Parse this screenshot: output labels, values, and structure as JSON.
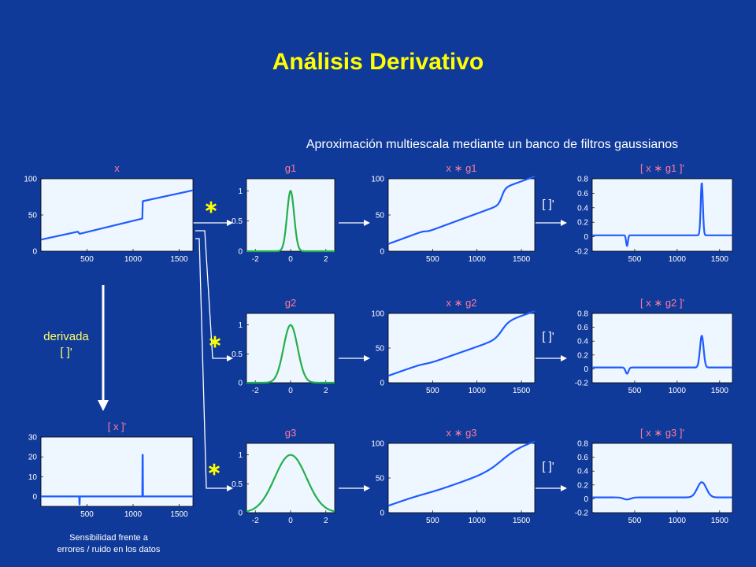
{
  "title": "Análisis Derivativo",
  "subtitle": "Aproximación multiescala mediante un banco de filtros gaussianos",
  "labels": {
    "x": "x",
    "derivative_x": "[ x ]'",
    "derivada": "derivada",
    "deriv_op": "[  ]'",
    "conv_symbol": "∗",
    "note_line1": "Sensibilidad frente a",
    "note_line2": "errores / ruido  en los datos"
  },
  "colors": {
    "background": "#103a9a",
    "title": "#ffff00",
    "plot_bg": "#eef6ff",
    "signal_line": "#1f5cff",
    "gauss_line": "#22b04a",
    "labels": "#ff7a9e",
    "connectors": "#ffffff"
  },
  "chart_data": [
    {
      "id": "x",
      "type": "line",
      "title": "x",
      "xticks": [
        500,
        1000,
        1500
      ],
      "yticks": [
        0,
        50,
        100
      ],
      "xlim": [
        0,
        1650
      ],
      "ylim": [
        0,
        100
      ],
      "series": [
        {
          "x": [
            0,
            400,
            420,
            1100,
            1105,
            1650
          ],
          "y": [
            16,
            27,
            24,
            45,
            69,
            84
          ]
        }
      ]
    },
    {
      "id": "dx",
      "type": "line",
      "title": "[ x ]'",
      "xticks": [
        500,
        1000,
        1500
      ],
      "yticks": [
        0,
        10,
        20,
        30
      ],
      "xlim": [
        0,
        1650
      ],
      "ylim": [
        -5,
        30
      ],
      "series": [
        {
          "x": [
            0,
            415,
            418,
            420,
            423,
            1100,
            1103,
            1105,
            1108,
            1650
          ],
          "y": [
            0,
            0,
            -4,
            -4,
            0,
            0,
            21,
            21,
            0,
            0
          ]
        }
      ]
    },
    {
      "id": "g1",
      "type": "line",
      "title": "g1",
      "xticks": [
        -2,
        0,
        2
      ],
      "yticks": [
        0,
        0.5,
        1
      ],
      "xlim": [
        -2.5,
        2.5
      ],
      "ylim": [
        0,
        1.2
      ],
      "gauss_sigma": 0.2
    },
    {
      "id": "g2",
      "type": "line",
      "title": "g2",
      "xticks": [
        -2,
        0,
        2
      ],
      "yticks": [
        0,
        0.5,
        1
      ],
      "xlim": [
        -2.5,
        2.5
      ],
      "ylim": [
        0,
        1.2
      ],
      "gauss_sigma": 0.4
    },
    {
      "id": "g3",
      "type": "line",
      "title": "g3",
      "xticks": [
        -2,
        0,
        2
      ],
      "yticks": [
        0,
        0.5,
        1
      ],
      "xlim": [
        -2.5,
        2.5
      ],
      "ylim": [
        0,
        1.2
      ],
      "gauss_sigma": 0.9
    },
    {
      "id": "xg1",
      "type": "line",
      "title": "x ∗ g1",
      "xticks": [
        500,
        1000,
        1500
      ],
      "yticks": [
        0,
        50,
        100
      ],
      "xlim": [
        0,
        1650
      ],
      "ylim": [
        0,
        100
      ],
      "smooth": 20
    },
    {
      "id": "xg2",
      "type": "line",
      "title": "x ∗ g2",
      "xticks": [
        500,
        1000,
        1500
      ],
      "yticks": [
        0,
        50,
        100
      ],
      "xlim": [
        0,
        1650
      ],
      "ylim": [
        0,
        100
      ],
      "smooth": 40
    },
    {
      "id": "xg3",
      "type": "line",
      "title": "x ∗ g3",
      "xticks": [
        500,
        1000,
        1500
      ],
      "yticks": [
        0,
        50,
        100
      ],
      "xlim": [
        0,
        1650
      ],
      "ylim": [
        0,
        100
      ],
      "smooth": 90
    },
    {
      "id": "dxg1",
      "type": "line",
      "title": "[ x ∗ g1 ]'",
      "xticks": [
        500,
        1000,
        1500
      ],
      "yticks": [
        -0.2,
        0,
        0.2,
        0.4,
        0.6,
        0.8
      ],
      "xlim": [
        0,
        1650
      ],
      "ylim": [
        -0.2,
        0.8
      ],
      "peak_neg": -0.15,
      "peak_pos": 0.73,
      "width": 18
    },
    {
      "id": "dxg2",
      "type": "line",
      "title": "[ x ∗ g2 ]'",
      "xticks": [
        500,
        1000,
        1500
      ],
      "yticks": [
        -0.2,
        0,
        0.2,
        0.4,
        0.6,
        0.8
      ],
      "xlim": [
        0,
        1650
      ],
      "ylim": [
        -0.2,
        0.8
      ],
      "peak_neg": -0.09,
      "peak_pos": 0.46,
      "width": 30
    },
    {
      "id": "dxg3",
      "type": "line",
      "title": "[ x ∗ g3 ]'",
      "xticks": [
        500,
        1000,
        1500
      ],
      "yticks": [
        -0.2,
        0,
        0.2,
        0.4,
        0.6,
        0.8
      ],
      "xlim": [
        0,
        1650
      ],
      "ylim": [
        -0.2,
        0.8
      ],
      "peak_neg": -0.03,
      "peak_pos": 0.22,
      "width": 75
    }
  ]
}
